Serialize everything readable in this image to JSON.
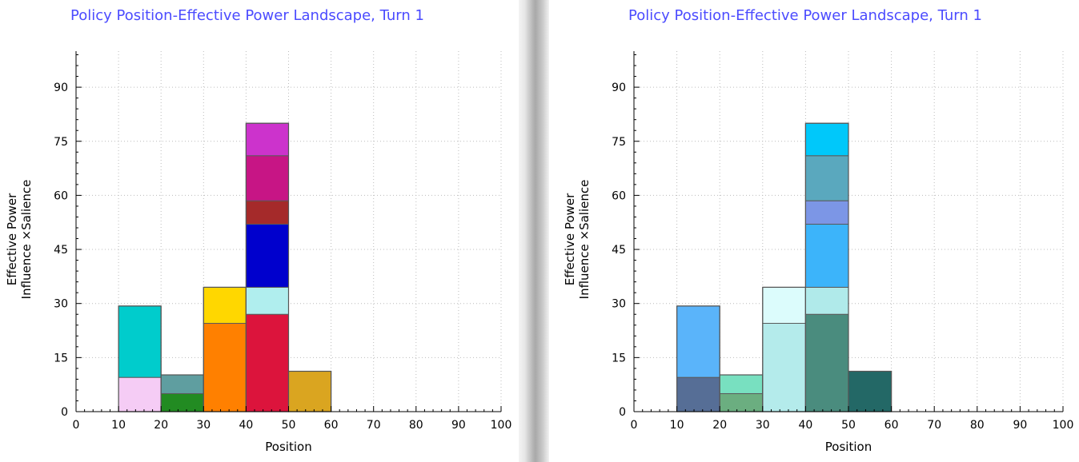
{
  "chart_data": [
    {
      "type": "bar",
      "stacked": true,
      "title": "Policy Position-Effective Power Landscape, Turn 1",
      "xlabel": "Position",
      "ylabel": [
        "Effective Power",
        "Influence ×Salience"
      ],
      "xlim": [
        0,
        100
      ],
      "ylim": [
        0,
        100
      ],
      "xticks": [
        0,
        10,
        20,
        30,
        40,
        50,
        60,
        70,
        80,
        90,
        100
      ],
      "yticks": [
        0,
        15,
        30,
        45,
        60,
        75,
        90
      ],
      "grid": true,
      "bins": [
        {
          "x0": 10,
          "x1": 20,
          "segments": [
            {
              "value": 9.5,
              "color": "#f5ccf5"
            },
            {
              "value": 19.8,
              "color": "#00cccc"
            }
          ]
        },
        {
          "x0": 20,
          "x1": 30,
          "segments": [
            {
              "value": 5,
              "color": "#228b22"
            },
            {
              "value": 5.2,
              "color": "#5f9ea0"
            }
          ]
        },
        {
          "x0": 30,
          "x1": 40,
          "segments": [
            {
              "value": 24.5,
              "color": "#ff8000"
            },
            {
              "value": 10,
              "color": "#ffd700"
            }
          ]
        },
        {
          "x0": 40,
          "x1": 50,
          "segments": [
            {
              "value": 27,
              "color": "#dc143c"
            },
            {
              "value": 7.5,
              "color": "#b0eeee"
            },
            {
              "value": 17.5,
              "color": "#0000cd"
            },
            {
              "value": 6.5,
              "color": "#a52a2a"
            },
            {
              "value": 12.5,
              "color": "#c71585"
            },
            {
              "value": 9,
              "color": "#cc33cc"
            }
          ]
        },
        {
          "x0": 50,
          "x1": 60,
          "segments": [
            {
              "value": 11.2,
              "color": "#daa520"
            }
          ]
        }
      ]
    },
    {
      "type": "bar",
      "stacked": true,
      "title": "Policy Position-Effective Power Landscape, Turn 1",
      "xlabel": "Position",
      "ylabel": [
        "Effective Power",
        "Influence ×Salience"
      ],
      "xlim": [
        0,
        100
      ],
      "ylim": [
        0,
        100
      ],
      "xticks": [
        0,
        10,
        20,
        30,
        40,
        50,
        60,
        70,
        80,
        90,
        100
      ],
      "yticks": [
        0,
        15,
        30,
        45,
        60,
        75,
        90
      ],
      "grid": true,
      "bins": [
        {
          "x0": 10,
          "x1": 20,
          "segments": [
            {
              "value": 9.5,
              "color": "#566e96"
            },
            {
              "value": 19.8,
              "color": "#5ab4fa"
            }
          ]
        },
        {
          "x0": 20,
          "x1": 30,
          "segments": [
            {
              "value": 5,
              "color": "#6bae80"
            },
            {
              "value": 5.2,
              "color": "#78e0c0"
            }
          ]
        },
        {
          "x0": 30,
          "x1": 40,
          "segments": [
            {
              "value": 24.5,
              "color": "#b4ebeb"
            },
            {
              "value": 10,
              "color": "#dcfcfc"
            }
          ]
        },
        {
          "x0": 40,
          "x1": 50,
          "segments": [
            {
              "value": 27,
              "color": "#4a8c7e"
            },
            {
              "value": 7.5,
              "color": "#b0eaea"
            },
            {
              "value": 17.5,
              "color": "#3cb4fa"
            },
            {
              "value": 6.5,
              "color": "#7c96e6"
            },
            {
              "value": 12.5,
              "color": "#5aa8be"
            },
            {
              "value": 9,
              "color": "#00c8fa"
            }
          ]
        },
        {
          "x0": 50,
          "x1": 60,
          "segments": [
            {
              "value": 11.2,
              "color": "#236866"
            }
          ]
        }
      ]
    }
  ]
}
